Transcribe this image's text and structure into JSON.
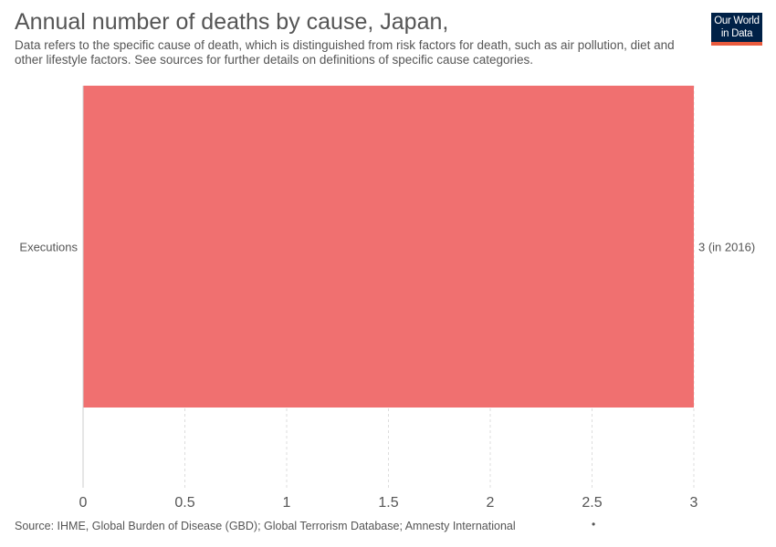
{
  "header": {
    "title": "Annual number of deaths by cause, Japan,",
    "subtitle": "Data refers to the specific cause of death, which is distinguished from risk factors for death, such as air pollution, diet and other lifestyle factors. See sources for further details on definitions of specific cause categories.",
    "logo_line1": "Our World",
    "logo_line2": "in Data"
  },
  "footer": {
    "source": "Source: IHME, Global Burden of Disease (GBD); Global Terrorism Database; Amnesty International",
    "dot": "•"
  },
  "colors": {
    "bar": "#f07070",
    "grid": "#dddddd",
    "axis": "#cccccc",
    "text": "#555555",
    "logo_bg": "#002147",
    "logo_accent": "#e95b3e"
  },
  "chart_data": {
    "type": "bar",
    "orientation": "horizontal",
    "categories": [
      "Executions"
    ],
    "values": [
      3
    ],
    "value_labels": [
      "3 (in 2016)"
    ],
    "xlim": [
      0,
      3
    ],
    "xticks": [
      "0",
      "0.5",
      "1",
      "1.5",
      "2",
      "2.5",
      "3"
    ],
    "xtick_values": [
      0,
      0.5,
      1,
      1.5,
      2,
      2.5,
      3
    ],
    "grid": true
  }
}
